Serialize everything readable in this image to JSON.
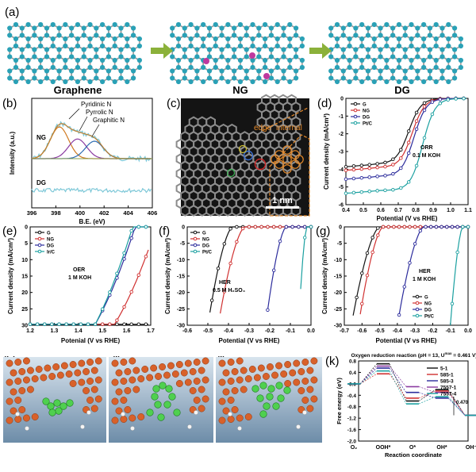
{
  "panel_labels": {
    "a": "(a)",
    "b": "(b)",
    "c": "(c)",
    "d": "(d)",
    "e": "(e)",
    "f": "(f)",
    "g": "(g)",
    "h": "(h)",
    "i": "(i)",
    "j": "(j)",
    "k": "(k)"
  },
  "panel_a": {
    "labels": [
      "Graphene",
      "NG",
      "DG"
    ]
  },
  "colors": {
    "G": "#111111",
    "NG": "#d03030",
    "DG": "#2c2c9c",
    "PtC": "#1aa0a0",
    "IrC": "#1aa0a0"
  },
  "chart_data": [
    {
      "id": "b",
      "type": "line",
      "xlabel": "B.E. (eV)",
      "ylabel": "Intensity (a.u.)",
      "xlim": [
        396,
        406
      ],
      "xticks": [
        "396",
        "398",
        "400",
        "402",
        "404",
        "406"
      ],
      "annotations": [
        "Pyridinic N",
        "Pyrrolic N",
        "Graphitic N",
        "NG",
        "DG"
      ],
      "peaks": [
        {
          "name": "Pyridinic N",
          "center": 398.3
        },
        {
          "name": "Pyrrolic N",
          "center": 399.8
        },
        {
          "name": "Graphitic N",
          "center": 401.2
        }
      ]
    },
    {
      "id": "d",
      "type": "line",
      "xlabel": "Potential (V vs RHE)",
      "ylabel": "Current density (mA/cm²)",
      "xlim": [
        0.4,
        1.1
      ],
      "ylim": [
        -6,
        0
      ],
      "xticks": [
        "0.4",
        "0.5",
        "0.6",
        "0.7",
        "0.8",
        "0.9",
        "1.0",
        "1.1"
      ],
      "yticks": [
        "0",
        "-1",
        "-2",
        "-3",
        "-4",
        "-5",
        "-6"
      ],
      "annotation": [
        "ORR",
        "0.1 M KOH"
      ],
      "series": [
        {
          "name": "G",
          "color": "#111111",
          "half_wave": 0.76,
          "limit": -3.7
        },
        {
          "name": "NG",
          "color": "#d03030",
          "half_wave": 0.78,
          "limit": -3.9
        },
        {
          "name": "DG",
          "color": "#2c2c9c",
          "half_wave": 0.79,
          "limit": -4.4
        },
        {
          "name": "Pt/C",
          "color": "#1aa0a0",
          "half_wave": 0.84,
          "limit": -5.2
        }
      ]
    },
    {
      "id": "e",
      "type": "line",
      "xlabel": "Potenial (V vs RHE)",
      "ylabel": "Current density (mA/cm²)",
      "xlim": [
        1.2,
        1.7
      ],
      "ylim": [
        0,
        30
      ],
      "xticks": [
        "1.2",
        "1.3",
        "1.4",
        "1.5",
        "1.6",
        "1.7"
      ],
      "yticks": [
        "0",
        "5",
        "10",
        "15",
        "20",
        "25",
        "30"
      ],
      "annotation": [
        "OER",
        "1 M KOH"
      ],
      "series": [
        {
          "name": "G",
          "color": "#111111",
          "onset": 1.7,
          "slope": 0
        },
        {
          "name": "NG",
          "color": "#d03030",
          "onset": 1.55,
          "slope": 120
        },
        {
          "name": "DG",
          "color": "#2c2c9c",
          "onset": 1.47,
          "slope": 130
        },
        {
          "name": "Ir/C",
          "color": "#1aa0a0",
          "onset": 1.47,
          "slope": 145
        }
      ]
    },
    {
      "id": "f",
      "type": "line",
      "xlabel": "Potential (V vs RHE)",
      "ylabel": "Current density (mA/cm²)",
      "xlim": [
        -0.6,
        0.0
      ],
      "ylim": [
        -30,
        0
      ],
      "xticks": [
        "-0.6",
        "-0.5",
        "-0.4",
        "-0.3",
        "-0.2",
        "-0.1",
        "0.0"
      ],
      "yticks": [
        "0",
        "-5",
        "-10",
        "-15",
        "-20",
        "-25",
        "-30"
      ],
      "annotation": [
        "HER",
        "0.5 M H₂SO₄"
      ],
      "series": [
        {
          "name": "G",
          "color": "#111111",
          "onset": -0.38,
          "end": -0.5
        },
        {
          "name": "NG",
          "color": "#d03030",
          "onset": -0.32,
          "end": -0.45
        },
        {
          "name": "DG",
          "color": "#2c2c9c",
          "onset": -0.12,
          "end": -0.22
        },
        {
          "name": "Pt/C",
          "color": "#1aa0a0",
          "onset": -0.02,
          "end": -0.06
        }
      ]
    },
    {
      "id": "g",
      "type": "line",
      "xlabel": "Potential (V vs RHE)",
      "ylabel": "Current density (mA/cm²)",
      "xlim": [
        -0.7,
        0.0
      ],
      "ylim": [
        -30,
        0
      ],
      "xticks": [
        "-0.7",
        "-0.6",
        "-0.5",
        "-0.4",
        "-0.3",
        "-0.2",
        "-0.1",
        "0.0"
      ],
      "yticks": [
        "0",
        "-5",
        "-10",
        "-15",
        "-20",
        "-25",
        "-30"
      ],
      "annotation": [
        "HER",
        "1 M KOH"
      ],
      "series": [
        {
          "name": "G",
          "color": "#111111",
          "onset": -0.5,
          "end": -0.66
        },
        {
          "name": "NG",
          "color": "#d03030",
          "onset": -0.48,
          "end": -0.62
        },
        {
          "name": "DG",
          "color": "#2c2c9c",
          "onset": -0.25,
          "end": -0.4
        },
        {
          "name": "Pt/C",
          "color": "#1aa0a0",
          "onset": -0.03,
          "end": -0.1
        }
      ]
    },
    {
      "id": "k",
      "type": "line",
      "title": "Oxygen reduction reaction (pH = 13, U",
      "title_sup": "max",
      "title_end": " = 0.461 V)",
      "xlabel": "Reaction coordinate",
      "ylabel": "Free energy (eV)",
      "ylim": [
        -2.0,
        0.8
      ],
      "yticks": [
        "0.8",
        "0.4",
        "0.0",
        "-0.4",
        "-0.8",
        "-1.2",
        "-1.6",
        "-2.0"
      ],
      "categories": [
        "O₂",
        "OOH*",
        "O*",
        "OH*",
        "OH⁻"
      ],
      "annotation": "0.470",
      "series": [
        {
          "name": "5-1",
          "color": "#111111",
          "values": [
            0.0,
            0.7,
            -0.6,
            -0.2,
            -1.1
          ]
        },
        {
          "name": "585-1",
          "color": "#d03030",
          "values": [
            0.0,
            0.35,
            -0.5,
            -0.25,
            -1.1
          ]
        },
        {
          "name": "585-3",
          "color": "#2c2c9c",
          "values": [
            0.0,
            0.55,
            -0.3,
            -0.5,
            -1.1
          ]
        },
        {
          "name": "7557-1",
          "color": "#8a3aa0",
          "values": [
            0.0,
            0.62,
            -0.1,
            -0.3,
            -1.1
          ]
        },
        {
          "name": "7557-4",
          "color": "#1aa0a0",
          "values": [
            0.0,
            0.45,
            -0.7,
            -0.45,
            -1.1
          ]
        }
      ]
    }
  ],
  "panel_c": {
    "texts": [
      "edge",
      "internal",
      "1 nm"
    ]
  }
}
